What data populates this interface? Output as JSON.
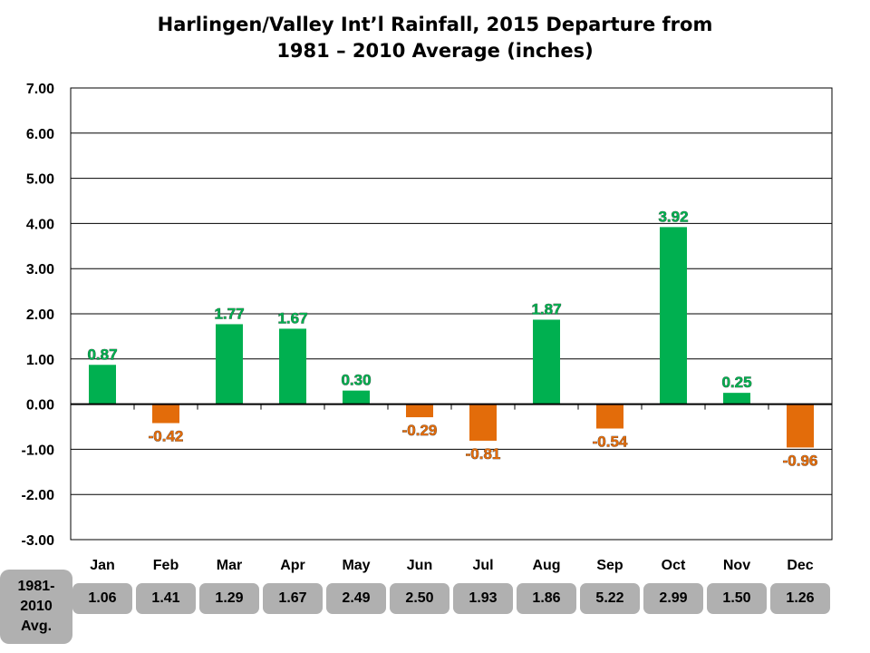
{
  "chart_data": {
    "type": "bar",
    "title": "Harlingen/Valley Int’l Rainfall, 2015 Departure from 1981 – 2010 Average (inches)",
    "title_lines": [
      "Harlingen/Valley Int’l Rainfall, 2015 Departure from",
      "1981 – 2010 Average (inches)"
    ],
    "categories": [
      "Jan",
      "Feb",
      "Mar",
      "Apr",
      "May",
      "Jun",
      "Jul",
      "Aug",
      "Sep",
      "Oct",
      "Nov",
      "Dec"
    ],
    "values": [
      0.87,
      -0.42,
      1.77,
      1.67,
      0.3,
      -0.29,
      -0.81,
      1.87,
      -0.54,
      3.92,
      0.25,
      -0.96
    ],
    "data_labels": [
      "0.87",
      "-0.42",
      "1.77",
      "1.67",
      "0.30",
      "-0.29",
      "-0.81",
      "1.87",
      "-0.54",
      "3.92",
      "0.25",
      "-0.96"
    ],
    "ylim": [
      -3,
      7
    ],
    "yticks": [
      "7.00",
      "6.00",
      "5.00",
      "4.00",
      "3.00",
      "2.00",
      "1.00",
      "0.00",
      "-1.00",
      "-2.00",
      "-3.00"
    ],
    "ytick_values": [
      7,
      6,
      5,
      4,
      3,
      2,
      1,
      0,
      -1,
      -2,
      -3
    ],
    "grid": true,
    "xlabel": "",
    "ylabel": "",
    "colors": {
      "positive": "#00b050",
      "negative": "#e36c0a"
    },
    "averages_table": {
      "label": "1981-\n2010\nAvg.",
      "values": [
        "1.06",
        "1.41",
        "1.29",
        "1.67",
        "2.49",
        "2.50",
        "1.93",
        "1.86",
        "5.22",
        "2.99",
        "1.50",
        "1.26"
      ]
    }
  }
}
